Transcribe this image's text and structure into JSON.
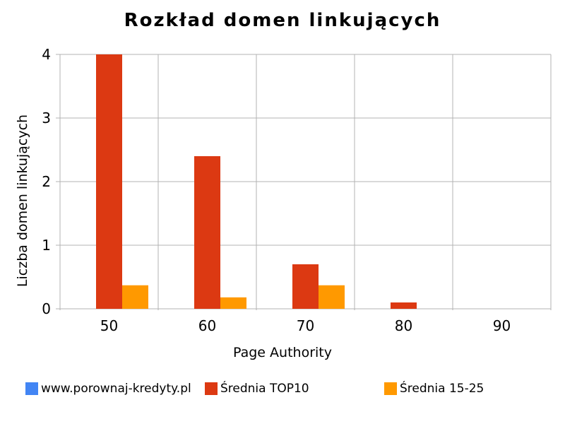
{
  "colors": {
    "series0": "#4285f4",
    "series1": "#dc3912",
    "series2": "#ff9900",
    "grid": "#b3b3b3",
    "background": "#ffffff"
  },
  "chart_data": {
    "type": "bar",
    "title": "Rozkład domen linkujących",
    "xlabel": "Page Authority",
    "ylabel": "Liczba domen linkujących",
    "categories": [
      "50",
      "60",
      "70",
      "80",
      "90"
    ],
    "ylim": [
      0,
      4
    ],
    "yticks": [
      0,
      1,
      2,
      3,
      4
    ],
    "grid": true,
    "legend_position": "bottom",
    "series": [
      {
        "name": "www.porownaj-kredyty.pl",
        "values": [
          0,
          0,
          0,
          0,
          0
        ]
      },
      {
        "name": "Średnia TOP10",
        "values": [
          4,
          2.4,
          0.7,
          0.1,
          0
        ]
      },
      {
        "name": "Średnia 15-25",
        "values": [
          0.37,
          0.18,
          0.37,
          0,
          0
        ]
      }
    ]
  }
}
